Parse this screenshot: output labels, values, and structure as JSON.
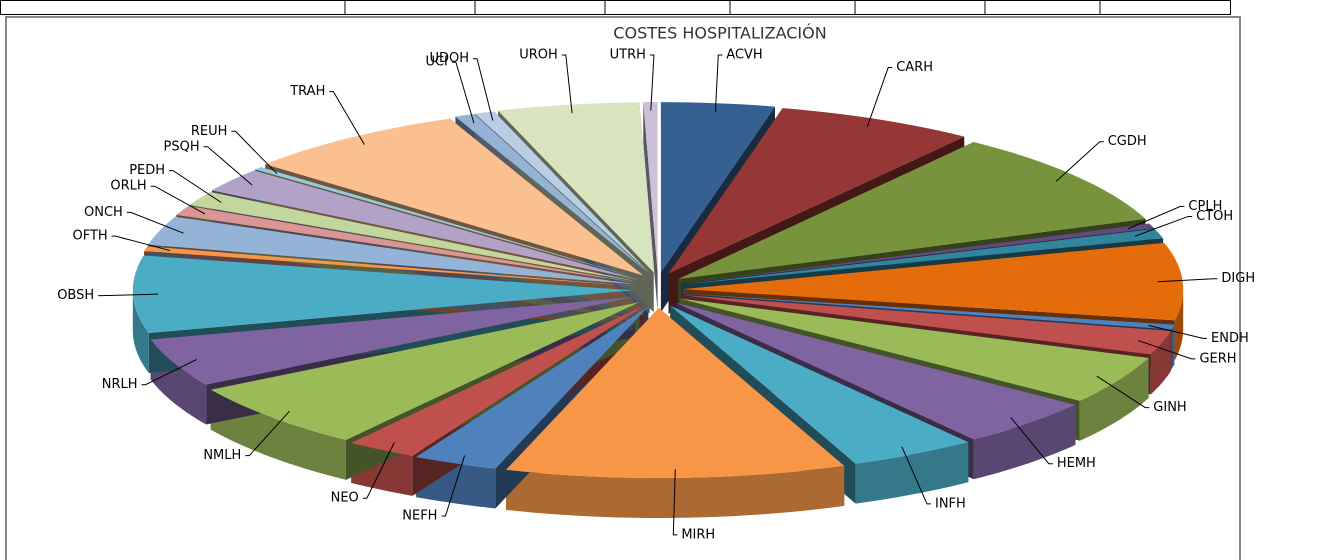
{
  "chart_data": {
    "type": "pie",
    "title": "COSTES HOSPITALIZACIÓN",
    "categories": [
      "ACVH",
      "CARH",
      "CGDH",
      "CPLH",
      "CTOH",
      "DIGH",
      "ENDH",
      "GERH",
      "GINH",
      "HEMH",
      "INFH",
      "MIRH",
      "NEFH",
      "NEO",
      "NMLH",
      "NRLH",
      "OBSH",
      "OFTH",
      "ONCH",
      "ORLH",
      "PEDH",
      "PSQH",
      "REUH",
      "TRAH",
      "UCI",
      "UDOH",
      "UROH",
      "UTRH"
    ],
    "values": [
      4,
      7,
      10,
      0.5,
      1,
      8,
      0.5,
      2.5,
      5,
      5,
      4.5,
      12,
      3,
      2.5,
      7,
      5,
      8,
      0.5,
      3,
      1,
      1.5,
      2.5,
      0.3,
      8,
      0.7,
      0.7,
      5,
      0.5
    ],
    "colors": [
      "#376092",
      "#953735",
      "#77933c",
      "#604a7b",
      "#31859c",
      "#e46c0a",
      "#4f81bd",
      "#c0504d",
      "#9bbb59",
      "#8064a2",
      "#4bacc6",
      "#f79646",
      "#4f81bd",
      "#c0504d",
      "#9bbb59",
      "#8064a2",
      "#4bacc6",
      "#f79646",
      "#95b3d7",
      "#d99694",
      "#c3d69b",
      "#b3a2c7",
      "#93cddd",
      "#fac090",
      "#95b3d7",
      "#b9cde5",
      "#d7e4bd",
      "#ccc1da"
    ]
  }
}
